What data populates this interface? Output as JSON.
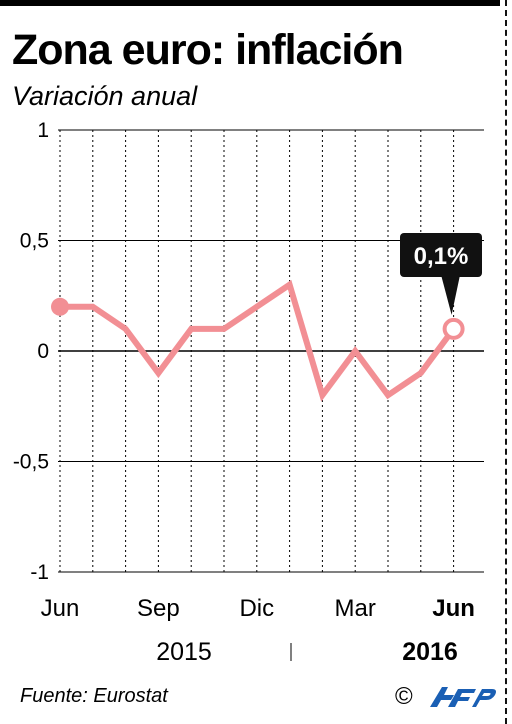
{
  "header": {
    "title": "Zona euro: inflación",
    "subtitle": "Variación anual"
  },
  "footer": {
    "source": "Fuente: Eurostat",
    "copyright": "©",
    "logo_text": "AFP"
  },
  "colors": {
    "line": "#f28f94",
    "grid": "#000000",
    "callout_bg": "#111111",
    "callout_text": "#ffffff"
  },
  "chart_data": {
    "type": "line",
    "ylim": [
      -1,
      1
    ],
    "y_ticks": [
      1,
      0.5,
      0,
      -0.5,
      -1
    ],
    "y_tick_labels": [
      "1",
      "0,5",
      "0",
      "-0,5",
      "-1"
    ],
    "x_ticks": [
      {
        "index": 0,
        "label": "Jun",
        "bold": false
      },
      {
        "index": 3,
        "label": "Sep",
        "bold": false
      },
      {
        "index": 6,
        "label": "Dic",
        "bold": false
      },
      {
        "index": 9,
        "label": "Mar",
        "bold": false
      },
      {
        "index": 12,
        "label": "Jun",
        "bold": true
      }
    ],
    "years": [
      {
        "label": "2015",
        "bold": false
      },
      {
        "label": "2016",
        "bold": true
      }
    ],
    "x": [
      "2015-06",
      "2015-07",
      "2015-08",
      "2015-09",
      "2015-10",
      "2015-11",
      "2015-12",
      "2016-01",
      "2016-02",
      "2016-03",
      "2016-04",
      "2016-05",
      "2016-06"
    ],
    "values": [
      0.2,
      0.2,
      0.1,
      -0.1,
      0.1,
      0.1,
      0.2,
      0.3,
      -0.2,
      0.0,
      -0.2,
      -0.1,
      0.1
    ],
    "callout": {
      "label": "0,1%",
      "index": 12
    },
    "grid": true
  }
}
